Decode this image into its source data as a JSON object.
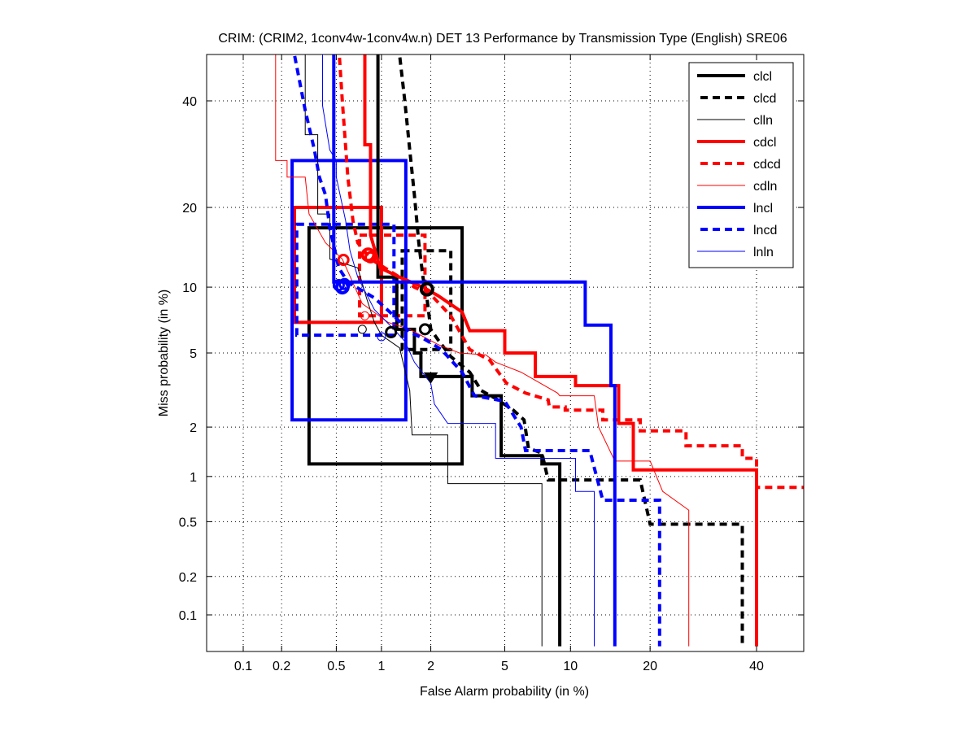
{
  "chart_data": {
    "type": "line",
    "subtype": "DET (normal deviate scale, step curves)",
    "title": "CRIM: (CRIM2, 1conv4w-1conv4w.n) DET 13 Performance by Transmission Type (English) SRE06",
    "xlabel": "False Alarm probability (in %)",
    "ylabel": "Miss probability (in %)",
    "xscale": "probit",
    "yscale": "probit",
    "xlim": [
      0.05,
      60
    ],
    "ylim": [
      0.055,
      60
    ],
    "xticks": [
      0.1,
      0.2,
      0.5,
      1,
      2,
      5,
      10,
      20,
      40
    ],
    "xtick_labels": [
      "0.1",
      "0.2",
      "0.5",
      "1",
      "2",
      "5",
      "10",
      "20",
      "40"
    ],
    "yticks": [
      0.1,
      0.2,
      0.5,
      1,
      2,
      5,
      10,
      20,
      40
    ],
    "ytick_labels": [
      "0.1",
      "0.2",
      "0.5",
      "1",
      "2",
      "5",
      "10",
      "20",
      "40"
    ],
    "grid": true,
    "legend_position": "top-right",
    "series": [
      {
        "name": "clcl",
        "color": "#000000",
        "style": "solid",
        "weight": "thick",
        "points": [
          [
            0.95,
            60
          ],
          [
            0.95,
            11
          ],
          [
            1.25,
            11
          ],
          [
            1.25,
            6.5
          ],
          [
            1.6,
            6.5
          ],
          [
            1.6,
            5
          ],
          [
            1.75,
            5
          ],
          [
            1.75,
            3.8
          ],
          [
            3.4,
            3.8
          ],
          [
            3.4,
            3.0
          ],
          [
            4.8,
            3.0
          ],
          [
            4.8,
            1.35
          ],
          [
            7.5,
            1.35
          ],
          [
            7.5,
            1.2
          ],
          [
            9.0,
            1.2
          ],
          [
            9.0,
            0.055
          ]
        ],
        "act_marker": [
          1.15,
          6.3
        ],
        "min_marker": [
          2.0,
          3.8
        ],
        "ci_box": [
          [
            0.32,
            1.2
          ],
          [
            3.0,
            17
          ]
        ]
      },
      {
        "name": "clcd",
        "color": "#000000",
        "style": "dashed",
        "weight": "thick",
        "points": [
          [
            1.2,
            60
          ],
          [
            1.3,
            50
          ],
          [
            1.4,
            40
          ],
          [
            1.5,
            30
          ],
          [
            1.6,
            22
          ],
          [
            1.7,
            15
          ],
          [
            1.8,
            11
          ],
          [
            1.9,
            9
          ],
          [
            2.0,
            6.5
          ],
          [
            2.2,
            5.8
          ],
          [
            2.6,
            4.8
          ],
          [
            3.3,
            4.0
          ],
          [
            3.8,
            3.2
          ],
          [
            4.5,
            2.9
          ],
          [
            5.5,
            2.5
          ],
          [
            6.2,
            2.2
          ],
          [
            6.5,
            1.5
          ],
          [
            7.5,
            1.4
          ],
          [
            8.0,
            0.95
          ],
          [
            18.5,
            0.95
          ],
          [
            20,
            0.48
          ],
          [
            37,
            0.48
          ],
          [
            37,
            0.055
          ]
        ],
        "act_marker": [
          1.85,
          6.5
        ],
        "min_marker": [
          1.9,
          9.8
        ],
        "ci_box": [
          [
            1.35,
            5.2
          ],
          [
            2.6,
            14
          ]
        ]
      },
      {
        "name": "clln",
        "color": "#000000",
        "style": "solid",
        "weight": "thin",
        "points": [
          [
            0.12,
            60
          ],
          [
            0.3,
            60
          ],
          [
            0.3,
            33
          ],
          [
            0.37,
            33
          ],
          [
            0.37,
            19
          ],
          [
            0.45,
            19
          ],
          [
            0.45,
            13
          ],
          [
            0.7,
            12
          ],
          [
            0.8,
            9
          ],
          [
            0.9,
            7
          ],
          [
            1.0,
            6.1
          ],
          [
            1.3,
            5.3
          ],
          [
            1.5,
            3.2
          ],
          [
            1.55,
            1.8
          ],
          [
            2.5,
            1.8
          ],
          [
            2.5,
            0.9
          ],
          [
            7.5,
            0.9
          ],
          [
            7.5,
            0.055
          ]
        ],
        "act_marker": [
          0.75,
          6.5
        ]
      },
      {
        "name": "cdcl",
        "color": "#ff0000",
        "style": "solid",
        "weight": "thick",
        "points": [
          [
            0.78,
            60
          ],
          [
            0.78,
            31
          ],
          [
            0.85,
            31
          ],
          [
            0.85,
            16
          ],
          [
            0.98,
            12
          ],
          [
            1.3,
            11
          ],
          [
            1.8,
            10
          ],
          [
            2.2,
            9.2
          ],
          [
            3.0,
            7.8
          ],
          [
            3.3,
            6.4
          ],
          [
            5.0,
            6.4
          ],
          [
            5.0,
            5.0
          ],
          [
            7.0,
            5.0
          ],
          [
            7.0,
            3.8
          ],
          [
            10.5,
            3.8
          ],
          [
            10.5,
            3.4
          ],
          [
            15.5,
            3.4
          ],
          [
            15.5,
            2.1
          ],
          [
            17.5,
            2.1
          ],
          [
            17.5,
            1.1
          ],
          [
            40,
            1.1
          ],
          [
            40,
            0.055
          ]
        ],
        "act_marker": [
          0.56,
          12.9
        ],
        "min_marker": [
          0.82,
          13.5
        ],
        "ci_box": [
          [
            0.25,
            7
          ],
          [
            1.0,
            20
          ]
        ]
      },
      {
        "name": "cdcd",
        "color": "#ff0000",
        "style": "dashed",
        "weight": "thick",
        "points": [
          [
            0.5,
            60
          ],
          [
            0.55,
            40
          ],
          [
            0.6,
            25
          ],
          [
            0.65,
            18
          ],
          [
            0.7,
            15
          ],
          [
            0.85,
            13
          ],
          [
            1.05,
            12
          ],
          [
            1.3,
            11
          ],
          [
            1.6,
            10
          ],
          [
            2.0,
            9.3
          ],
          [
            2.6,
            7.5
          ],
          [
            3.3,
            5.2
          ],
          [
            4.2,
            4.6
          ],
          [
            5.1,
            3.5
          ],
          [
            6.3,
            3.1
          ],
          [
            8.0,
            2.85
          ],
          [
            8.1,
            2.6
          ],
          [
            9.5,
            2.6
          ],
          [
            9.5,
            2.5
          ],
          [
            13.5,
            2.5
          ],
          [
            13.5,
            2.2
          ],
          [
            18.5,
            2.2
          ],
          [
            18.5,
            1.9
          ],
          [
            26,
            1.9
          ],
          [
            26,
            1.55
          ],
          [
            37,
            1.55
          ],
          [
            37,
            1.3
          ],
          [
            40,
            1.3
          ],
          [
            40,
            0.85
          ],
          [
            60,
            0.85
          ]
        ],
        "act_marker": [
          0.85,
          13.2
        ],
        "ci_box": [
          [
            0.72,
            7.5
          ],
          [
            1.85,
            16
          ]
        ]
      },
      {
        "name": "cdln",
        "color": "#ff0000",
        "style": "solid",
        "weight": "thin",
        "points": [
          [
            0.18,
            60
          ],
          [
            0.18,
            28
          ],
          [
            0.22,
            28
          ],
          [
            0.22,
            25
          ],
          [
            0.3,
            25
          ],
          [
            0.32,
            19
          ],
          [
            0.42,
            15
          ],
          [
            0.55,
            13
          ],
          [
            0.75,
            8.5
          ],
          [
            1.1,
            7
          ],
          [
            1.5,
            6.5
          ],
          [
            2.2,
            5.5
          ],
          [
            2.9,
            5.0
          ],
          [
            4.0,
            4.9
          ],
          [
            4.5,
            4.5
          ],
          [
            6.0,
            4.0
          ],
          [
            8.8,
            3.1
          ],
          [
            9.0,
            3.0
          ],
          [
            12.5,
            3.0
          ],
          [
            13.0,
            2.0
          ],
          [
            15.0,
            1.25
          ],
          [
            20,
            1.25
          ],
          [
            22,
            0.8
          ],
          [
            26.5,
            0.6
          ],
          [
            26.5,
            0.055
          ]
        ],
        "act_marker": [
          0.78,
          7.5
        ]
      },
      {
        "name": "lncl",
        "color": "#0000ff",
        "style": "solid",
        "weight": "thick",
        "points": [
          [
            0.09,
            60
          ],
          [
            0.09,
            54
          ],
          [
            0.48,
            54
          ],
          [
            0.48,
            10.5
          ],
          [
            11.5,
            10.5
          ],
          [
            11.5,
            6.8
          ],
          [
            14.5,
            6.8
          ],
          [
            14.5,
            3.4
          ],
          [
            15,
            3.4
          ],
          [
            15,
            0.055
          ]
        ],
        "act_marker": [
          0.52,
          10.2
        ],
        "min_marker": [
          0.55,
          10.0
        ],
        "ci_box": [
          [
            0.24,
            2.2
          ],
          [
            1.42,
            28
          ]
        ]
      },
      {
        "name": "lncd",
        "color": "#0000ff",
        "style": "dashed",
        "weight": "thick",
        "points": [
          [
            0.2,
            60
          ],
          [
            0.25,
            50
          ],
          [
            0.3,
            38
          ],
          [
            0.35,
            30
          ],
          [
            0.38,
            25
          ],
          [
            0.42,
            22
          ],
          [
            0.45,
            17
          ],
          [
            0.52,
            12
          ],
          [
            0.6,
            10.5
          ],
          [
            0.9,
            9
          ],
          [
            1.2,
            7.5
          ],
          [
            1.5,
            6.3
          ],
          [
            1.8,
            5.9
          ],
          [
            2.3,
            5.2
          ],
          [
            3.0,
            4.0
          ],
          [
            3.5,
            3.0
          ],
          [
            4.2,
            2.9
          ],
          [
            5.0,
            2.8
          ],
          [
            6.0,
            2.0
          ],
          [
            6.3,
            1.45
          ],
          [
            12,
            1.45
          ],
          [
            13.5,
            0.7
          ],
          [
            21.5,
            0.7
          ],
          [
            21.5,
            0.055
          ]
        ],
        "act_marker": [
          0.57,
          10.3
        ],
        "ci_box": [
          [
            0.26,
            6.1
          ],
          [
            1.2,
            17.5
          ]
        ]
      },
      {
        "name": "lnln",
        "color": "#0000ff",
        "style": "solid",
        "weight": "thin",
        "points": [
          [
            0.15,
            60
          ],
          [
            0.4,
            55
          ],
          [
            0.4,
            39
          ],
          [
            0.45,
            30
          ],
          [
            0.5,
            28
          ],
          [
            0.5,
            25
          ],
          [
            0.58,
            18
          ],
          [
            0.62,
            14
          ],
          [
            0.7,
            11
          ],
          [
            0.9,
            8
          ],
          [
            1.2,
            6.5
          ],
          [
            1.4,
            5.7
          ],
          [
            1.6,
            4.5
          ],
          [
            2.0,
            3.5
          ],
          [
            2.1,
            2.7
          ],
          [
            2.5,
            2.1
          ],
          [
            4.5,
            2.1
          ],
          [
            4.5,
            1.3
          ],
          [
            10.5,
            1.3
          ],
          [
            10.5,
            0.8
          ],
          [
            12.5,
            0.8
          ],
          [
            12.5,
            0.055
          ]
        ],
        "act_marker": [
          1.0,
          6.0
        ]
      }
    ]
  }
}
